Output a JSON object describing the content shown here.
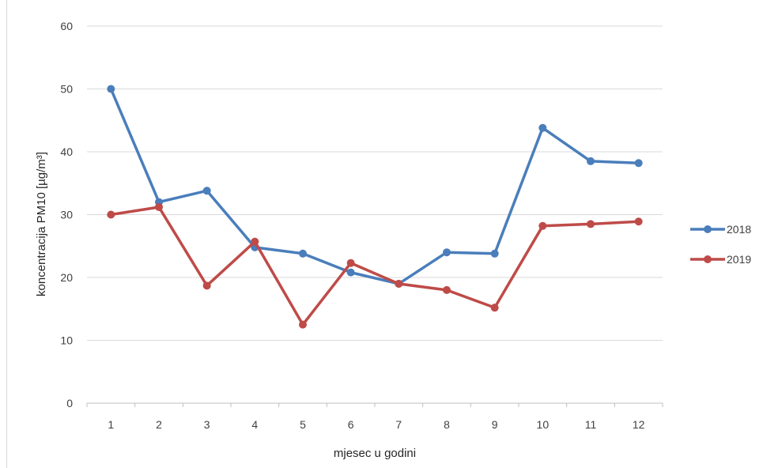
{
  "chart_data": {
    "type": "line",
    "title": "",
    "xlabel": "mjesec u godini",
    "ylabel": "koncentracija PM10 [µg/m³]",
    "ylim": [
      0,
      60
    ],
    "yticks": [
      0,
      10,
      20,
      30,
      40,
      50,
      60
    ],
    "categories": [
      "1",
      "2",
      "3",
      "4",
      "5",
      "6",
      "7",
      "8",
      "9",
      "10",
      "11",
      "12"
    ],
    "grid": true,
    "legend_position": "right",
    "series": [
      {
        "name": "2018",
        "color": "#4a7ebb",
        "values": [
          50.0,
          32.0,
          33.8,
          24.8,
          23.8,
          20.8,
          19.0,
          24.0,
          23.8,
          43.8,
          38.5,
          38.2
        ]
      },
      {
        "name": "2019",
        "color": "#be4b48",
        "values": [
          30.0,
          31.2,
          18.7,
          25.7,
          12.5,
          22.3,
          19.0,
          18.0,
          15.2,
          28.2,
          28.5,
          28.9
        ]
      }
    ]
  }
}
